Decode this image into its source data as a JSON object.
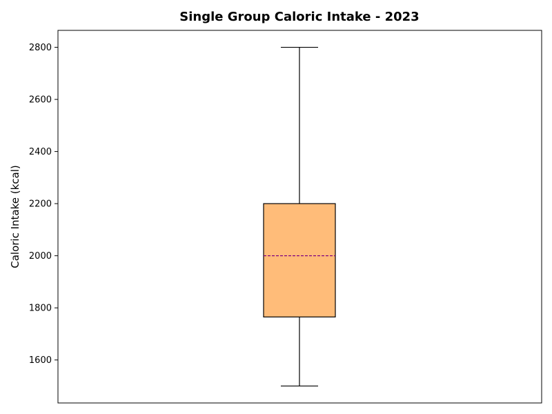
{
  "chart_data": {
    "type": "box",
    "title": "Single Group Caloric Intake - 2023",
    "xlabel": "",
    "ylabel": "Caloric Intake (kcal)",
    "ylim": [
      1435,
      2865
    ],
    "yticks": [
      1600,
      1800,
      2000,
      2200,
      2400,
      2600,
      2800
    ],
    "grid": false,
    "series": [
      {
        "min": 1500,
        "q1": 1765,
        "median": 2000,
        "q3": 2200,
        "max": 2800
      }
    ],
    "colors": {
      "box_fill": "#FFBC79",
      "box_edge": "#000000",
      "median": "#800080",
      "whisker": "#000000"
    }
  }
}
